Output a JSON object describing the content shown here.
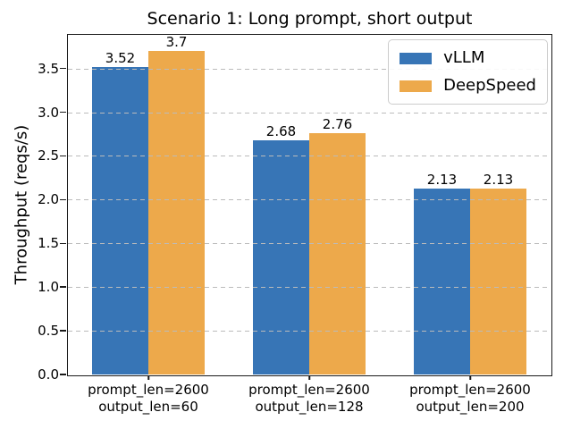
{
  "chart_data": {
    "type": "bar",
    "title": "Scenario 1: Long prompt, short output",
    "xlabel": "",
    "ylabel": "Throughput (reqs/s)",
    "categories": [
      "prompt_len=2600\noutput_len=60",
      "prompt_len=2600\noutput_len=128",
      "prompt_len=2600\noutput_len=200"
    ],
    "series": [
      {
        "name": "vLLM",
        "color": "#3775B6",
        "values": [
          3.52,
          2.68,
          2.13
        ],
        "labels": [
          "3.52",
          "2.68",
          "2.13"
        ]
      },
      {
        "name": "DeepSpeed",
        "color": "#EDA94B",
        "values": [
          3.7,
          2.76,
          2.13
        ],
        "labels": [
          "3.7",
          "2.76",
          "2.13"
        ]
      }
    ],
    "ylim": [
      0,
      3.885
    ],
    "yticks": [
      0,
      0.5,
      1,
      1.5,
      2,
      2.5,
      3,
      3.5
    ],
    "ytick_labels": [
      "0.0",
      "0.5",
      "1.0",
      "1.5",
      "2.0",
      "2.5",
      "3.0",
      "3.5"
    ],
    "bar_width_data_units": 0.35,
    "grid": {
      "axis": "y",
      "style": "dashed",
      "color": "#BBBBBB",
      "drawn_above_bars": true
    },
    "legend": {
      "position": "upper-right",
      "entries": [
        "vLLM",
        "DeepSpeed"
      ]
    },
    "colors": {
      "spine": "#1A1A1A",
      "text": "#000000",
      "background": "#FFFFFF",
      "legend_border": "#CCCCCC",
      "grid": "#BBBBBB"
    }
  }
}
